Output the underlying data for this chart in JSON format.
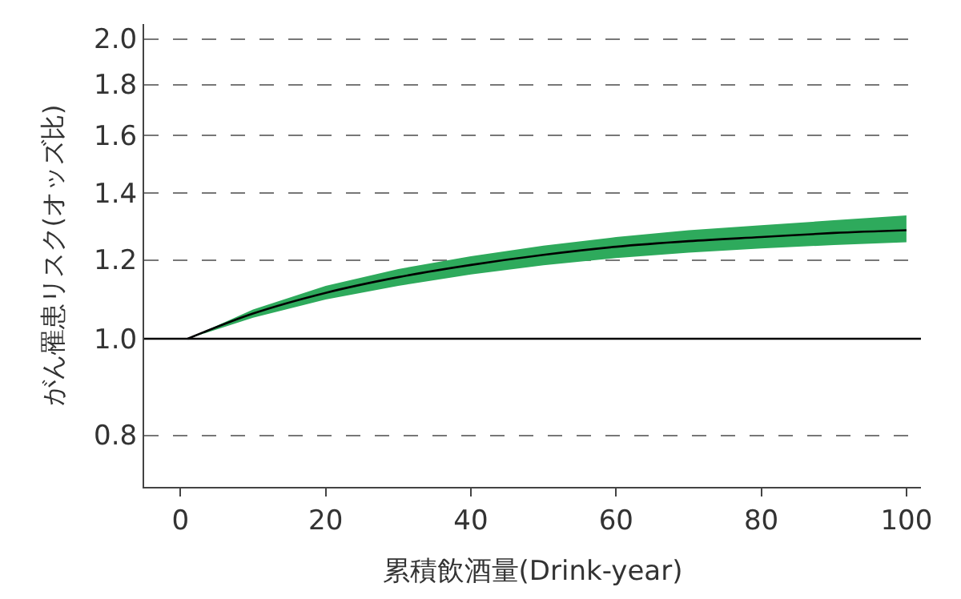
{
  "chart_data": {
    "type": "line",
    "xlabel": "累積飲酒量(Drink-year)",
    "ylabel": "がん罹患リスク(オッズ比)",
    "x": [
      1,
      10,
      20,
      30,
      40,
      50,
      60,
      70,
      80,
      90,
      100
    ],
    "series": [
      {
        "color": "#000000",
        "values": [
          1.0,
          1.06,
          1.112,
          1.153,
          1.186,
          1.214,
          1.237,
          1.253,
          1.265,
          1.277,
          1.285
        ],
        "lower": [
          1.0,
          1.05,
          1.095,
          1.13,
          1.16,
          1.185,
          1.205,
          1.22,
          1.232,
          1.242,
          1.25
        ],
        "upper": [
          1.0,
          1.07,
          1.13,
          1.175,
          1.21,
          1.24,
          1.265,
          1.285,
          1.3,
          1.315,
          1.33
        ]
      }
    ],
    "log": "y",
    "xlim": [
      -5,
      102
    ],
    "ylim": [
      0.71,
      2.07
    ],
    "xticks": [
      0,
      20,
      40,
      60,
      80,
      100
    ],
    "yticks": [
      0.8,
      {
        "value": 1.0,
        "label": "1.0"
      },
      1.2,
      1.4,
      1.6,
      1.8,
      {
        "value": 2.0,
        "label": "2.0"
      }
    ],
    "grid": "y",
    "marker": "none",
    "line_style": "solid",
    "ref_lines": [
      {
        "axis": "y",
        "value": 1.0,
        "label": null,
        "color": "#000000",
        "line_style": "solid"
      }
    ]
  }
}
